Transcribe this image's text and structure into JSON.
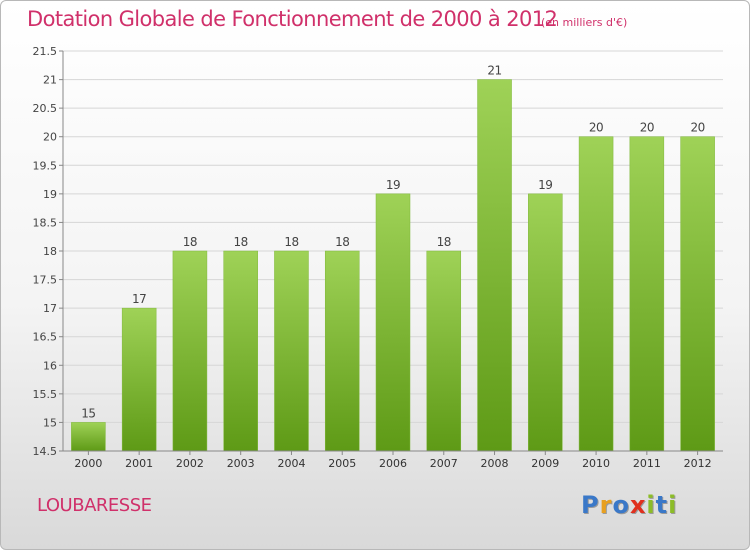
{
  "title": "Dotation Globale de Fonctionnement de 2000 à 2012",
  "subtitle": "(en milliers d'€)",
  "commune": "LOUBARESSE",
  "logo": {
    "text": "Proxiti",
    "letters": [
      "P",
      "r",
      "o",
      "x",
      "i",
      "t",
      "i"
    ],
    "colors": [
      "#3a78c8",
      "#e8a020",
      "#3a78c8",
      "#e0301e",
      "#8cbc28",
      "#3a78c8",
      "#8cbc28"
    ]
  },
  "colors": {
    "bar_top": "#9fd257",
    "bar_bottom": "#5e9a16",
    "title": "#d0306a"
  },
  "chart_data": {
    "type": "bar",
    "categories": [
      "2000",
      "2001",
      "2002",
      "2003",
      "2004",
      "2005",
      "2006",
      "2007",
      "2008",
      "2009",
      "2010",
      "2011",
      "2012"
    ],
    "values": [
      15,
      17,
      18,
      18,
      18,
      18,
      19,
      18,
      21,
      19,
      20,
      20,
      20
    ],
    "value_labels": [
      "15",
      "17",
      "18",
      "18",
      "18",
      "18",
      "19",
      "18",
      "21",
      "19",
      "20",
      "20",
      "20"
    ],
    "ylim": [
      14.5,
      21.5
    ],
    "yticks": [
      14.5,
      15,
      15.5,
      16,
      16.5,
      17,
      17.5,
      18,
      18.5,
      19,
      19.5,
      20,
      20.5,
      21,
      21.5
    ],
    "ytick_labels": [
      "14.5",
      "15",
      "15.5",
      "16",
      "16.5",
      "17",
      "17.5",
      "18",
      "18.5",
      "19",
      "19.5",
      "20",
      "20.5",
      "21",
      "21.5"
    ],
    "grid": "horizontal",
    "xlabel": "",
    "ylabel": ""
  }
}
